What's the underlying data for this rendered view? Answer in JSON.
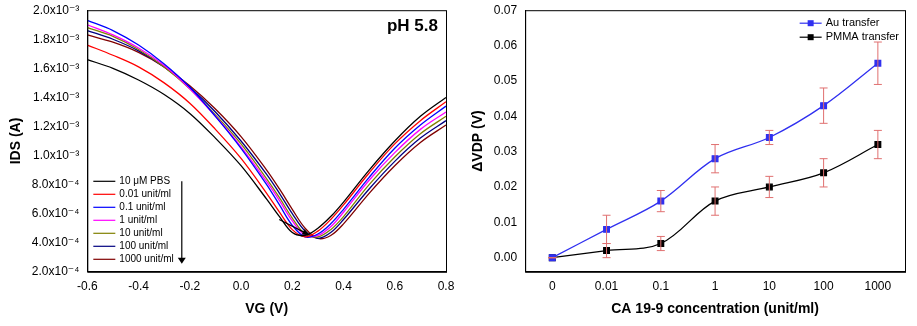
{
  "chart_data": [
    {
      "type": "line",
      "x_label": "VG (V)",
      "y_label": "IDS (A)",
      "annotation": "pH 5.8",
      "x": [
        -0.6,
        -0.5,
        -0.4,
        -0.3,
        -0.2,
        -0.1,
        0,
        0.1,
        0.15,
        0.2,
        0.25,
        0.3,
        0.35,
        0.4,
        0.5,
        0.6,
        0.7,
        0.8
      ],
      "series": [
        {
          "name": "10 μM PBS",
          "color": "#000000",
          "values": [
            0.00166,
            0.0016,
            0.00152,
            0.00142,
            0.00129,
            0.00112,
            0.00093,
            0.0007,
            0.00058,
            0.00047,
            0.00045,
            0.0005,
            0.00058,
            0.00068,
            0.0009,
            0.0011,
            0.00127,
            0.0014
          ]
        },
        {
          "name": "0.01 unit/ml",
          "color": "#ff0000",
          "values": [
            0.00176,
            0.00169,
            0.00161,
            0.0015,
            0.00136,
            0.00118,
            0.00098,
            0.00074,
            0.00061,
            0.00049,
            0.00044,
            0.00048,
            0.00056,
            0.00066,
            0.00088,
            0.00108,
            0.00124,
            0.00137
          ]
        },
        {
          "name": "0.1 unit/ml",
          "color": "#0000ff",
          "values": [
            0.00193,
            0.00186,
            0.00176,
            0.00163,
            0.00147,
            0.00127,
            0.00105,
            0.0008,
            0.00066,
            0.00052,
            0.00044,
            0.00046,
            0.00053,
            0.00063,
            0.00085,
            0.00105,
            0.00121,
            0.00134
          ]
        },
        {
          "name": "1 unit/ml",
          "color": "#ff00ff",
          "values": [
            0.0019,
            0.00183,
            0.00174,
            0.00162,
            0.00146,
            0.00127,
            0.00106,
            0.00082,
            0.00069,
            0.00055,
            0.00045,
            0.00045,
            0.00051,
            0.00061,
            0.00083,
            0.00102,
            0.00118,
            0.0013
          ]
        },
        {
          "name": "10 unit/ml",
          "color": "#808000",
          "values": [
            0.00188,
            0.00182,
            0.00173,
            0.00161,
            0.00146,
            0.00128,
            0.00108,
            0.00084,
            0.00071,
            0.00057,
            0.00046,
            0.00044,
            0.00049,
            0.00058,
            0.0008,
            0.00099,
            0.00115,
            0.00127
          ]
        },
        {
          "name": "100 unit/ml",
          "color": "#000080",
          "values": [
            0.00186,
            0.0018,
            0.00172,
            0.00161,
            0.00147,
            0.0013,
            0.0011,
            0.00087,
            0.00074,
            0.0006,
            0.00048,
            0.00043,
            0.00047,
            0.00056,
            0.00077,
            0.00096,
            0.00112,
            0.00124
          ]
        },
        {
          "name": "1000 unit/ml",
          "color": "#800000",
          "values": [
            0.00183,
            0.00178,
            0.00171,
            0.00161,
            0.00148,
            0.00132,
            0.00113,
            0.0009,
            0.00077,
            0.00063,
            0.0005,
            0.00043,
            0.00045,
            0.00053,
            0.00074,
            0.00093,
            0.00109,
            0.00121
          ]
        }
      ],
      "xlim": [
        -0.6,
        0.8
      ],
      "xticks": [
        -0.6,
        -0.4,
        -0.2,
        {
          "value": 0,
          "label": "0.0"
        },
        0.2,
        0.4,
        0.6,
        0.8
      ],
      "ylim": [
        0.0002,
        0.002
      ],
      "yticks": [
        {
          "value": 0.0002,
          "label": "2.0x10⁻⁴"
        },
        {
          "value": 0.0004,
          "label": "4.0x10⁻⁴"
        },
        {
          "value": 0.0006,
          "label": "6.0x10⁻⁴"
        },
        {
          "value": 0.0008,
          "label": "8.0x10⁻⁴"
        },
        {
          "value": 0.001,
          "label": "1.0x10⁻³"
        },
        {
          "value": 0.0012,
          "label": "1.2x10⁻³"
        },
        {
          "value": 0.0014,
          "label": "1.4x10⁻³"
        },
        {
          "value": 0.0016,
          "label": "1.6x10⁻³"
        },
        {
          "value": 0.0018,
          "label": "1.8x10⁻³"
        },
        {
          "value": 0.002,
          "label": "2.0x10⁻³"
        }
      ],
      "grid": false,
      "legend": "lower left"
    },
    {
      "type": "line",
      "x_label": "CA 19-9 concentration (unit/ml)",
      "y_label": "ΔVDP (V)",
      "categories": [
        "0",
        "0.01",
        "0.1",
        "1",
        "10",
        "100",
        "1000"
      ],
      "series": [
        {
          "name": "Au transfer",
          "color": "#3030f0",
          "marker": "square",
          "values": [
            0,
            0.008,
            0.016,
            0.028,
            0.034,
            0.043,
            0.055
          ],
          "errors": [
            0,
            0.004,
            0.003,
            0.004,
            0.002,
            0.005,
            0.006
          ]
        },
        {
          "name": "PMMA transfer",
          "color": "#000000",
          "marker": "square",
          "values": [
            0,
            0.002,
            0.004,
            0.016,
            0.02,
            0.024,
            0.032
          ],
          "errors": [
            0,
            0.002,
            0.002,
            0.004,
            0.003,
            0.004,
            0.004
          ]
        }
      ],
      "ylim": [
        -0.004,
        0.07
      ],
      "yticks": [
        {
          "value": 0,
          "label": "0.00"
        },
        0.01,
        0.02,
        0.03,
        0.04,
        0.05,
        0.06,
        0.07
      ],
      "grid": false,
      "legend": "upper right"
    }
  ]
}
